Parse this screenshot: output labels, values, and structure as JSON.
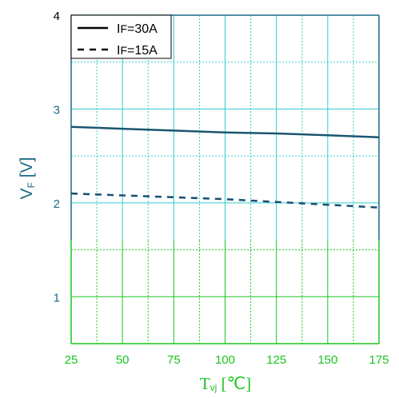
{
  "chart_data": {
    "type": "line",
    "title": "",
    "xlabel": "Tvj [℃]",
    "xlabel_parts": {
      "main": "T",
      "sub": "vj",
      "unit": " [℃]"
    },
    "ylabel": "VF [V]",
    "ylabel_parts": {
      "main": "V",
      "sub": "F",
      "unit": " [V]"
    },
    "xlim": [
      25,
      175
    ],
    "ylim": [
      0.5,
      4
    ],
    "x_ticks": [
      25,
      50,
      75,
      100,
      125,
      150,
      175
    ],
    "y_ticks": [
      1,
      2,
      3,
      4
    ],
    "grid": true,
    "legend_position": "top-left",
    "x": [
      25,
      50,
      75,
      100,
      125,
      150,
      175
    ],
    "series": [
      {
        "name": "IF=30A",
        "legend_parts": [
          "I",
          "F",
          "=30A"
        ],
        "style": "solid",
        "values": [
          2.81,
          2.79,
          2.77,
          2.75,
          2.74,
          2.72,
          2.7
        ]
      },
      {
        "name": "IF=15A",
        "legend_parts": [
          "I",
          "F",
          "=15A"
        ],
        "style": "dashed",
        "values": [
          2.1,
          2.08,
          2.06,
          2.04,
          2.01,
          1.98,
          1.95
        ]
      }
    ],
    "colors": {
      "top_region": "#1b6a86",
      "bottom_region": "#18c51e",
      "grid_top": "#33cccc",
      "grid_bottom": "#18c51e",
      "line_30A": "#1b5670",
      "line_15A": "#164f73"
    }
  }
}
